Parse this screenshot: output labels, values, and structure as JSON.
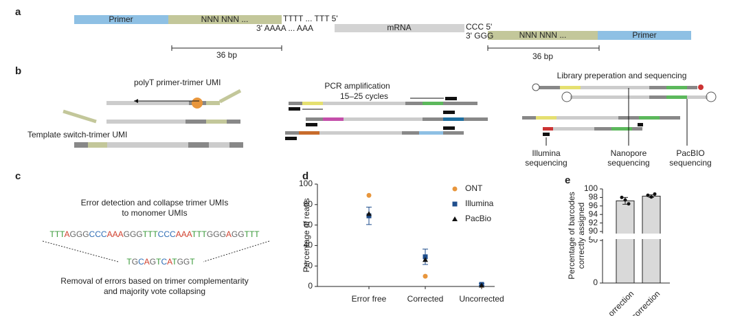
{
  "panel_a": {
    "letter": "a",
    "primer_left": "Primer",
    "umi_left": "NNN NNN ...",
    "polyT": "TTTT ... TTT 5'",
    "polyA": "3' AAAA ... AAA",
    "mrna": "mRNA",
    "ccc": "CCC 5'",
    "ggg": "3' GGG",
    "umi_right": "NNN NNN ...",
    "primer_right": "Primer",
    "scale_left": "36 bp",
    "scale_right": "36 bp"
  },
  "panel_b": {
    "letter": "b",
    "polyt_label": "polyT primer-trimer UMI",
    "template_label": "Template switch-trimer UMI",
    "pcr_label": "PCR amplification",
    "pcr_cycles": "15–25 cycles",
    "library_label": "Library preperation and sequencing",
    "illumina": [
      "Illumina",
      "sequencing"
    ],
    "nanopore": [
      "Nanopore",
      "sequencing"
    ],
    "pacbio": [
      "PacBIO",
      "sequencing"
    ]
  },
  "panel_c": {
    "letter": "c",
    "heading": [
      "Error detection and collapse trimer UMIs",
      "to monomer UMIs"
    ],
    "trimer_sequence": "TTTAGGGCCCAAAGGGTTTCCCAAATTTGGGAGGTTT",
    "monomer_sequence": "TGCAGTCATGGT",
    "footer": [
      "Removal of errors based on trimer complementarity",
      "and majority vote collapsing"
    ]
  },
  "panel_d": {
    "letter": "d",
    "chart_data": {
      "type": "scatter",
      "y_label": "Percentage of reads",
      "categories": [
        "Error free",
        "Corrected",
        "Uncorrected"
      ],
      "ylim": [
        0,
        100
      ],
      "yticks": [
        0,
        20,
        40,
        60,
        80,
        100
      ],
      "legend": "top-right",
      "series": [
        {
          "name": "ONT",
          "color": "#e8963c",
          "marker": "circle",
          "values": [
            89,
            10,
            1
          ]
        },
        {
          "name": "Illumina",
          "color": "#1f4e8c",
          "marker": "square",
          "values": [
            69,
            29,
            2
          ],
          "errors": [
            8.5,
            7.5,
            1
          ]
        },
        {
          "name": "PacBio",
          "color": "#111111",
          "marker": "triangle",
          "values": [
            71,
            26,
            1
          ]
        }
      ]
    }
  },
  "panel_e": {
    "letter": "e",
    "chart_data": {
      "type": "bar",
      "y_label": [
        "Percentage of barcodes",
        "correctly assigned"
      ],
      "categories": [
        "orrection",
        "correction"
      ],
      "values": [
        97.2,
        98.3
      ],
      "errors": [
        0.8,
        0.3
      ],
      "points": [
        [
          98,
          97.4,
          96.5
        ],
        [
          98.5,
          98.1,
          98.8
        ]
      ],
      "color": "#d9d9d9",
      "ylim": [
        0,
        100
      ],
      "axis_break": [
        50,
        90
      ],
      "yticks": [
        0,
        50,
        90,
        92,
        94,
        96,
        98,
        100
      ]
    }
  }
}
